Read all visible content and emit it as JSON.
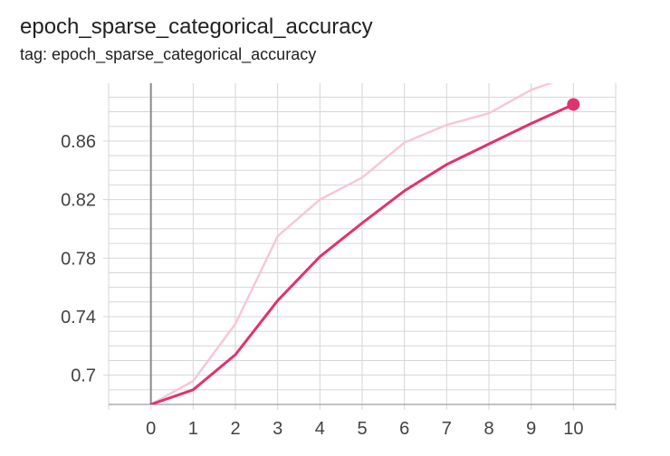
{
  "card": {
    "title": "epoch_sparse_categorical_accuracy",
    "subtitle": "tag: epoch_sparse_categorical_accuracy"
  },
  "colors": {
    "smoothed": "#e0336e",
    "raw": "#f7c7d6",
    "grid": "#d6d6d6",
    "axis": "#9e9e9e",
    "zero_line": "#8a8a8a"
  },
  "chart_data": {
    "type": "line",
    "title": "",
    "xlabel": "",
    "ylabel": "",
    "x": [
      0,
      1,
      2,
      3,
      4,
      5,
      6,
      7,
      8,
      9,
      10
    ],
    "xlim": [
      -1,
      11
    ],
    "ylim": [
      0.68,
      0.8995
    ],
    "x_ticks": [
      "0",
      "1",
      "2",
      "3",
      "4",
      "5",
      "6",
      "7",
      "8",
      "9",
      "10"
    ],
    "y_ticks": [
      "0.7",
      "0.74",
      "0.78",
      "0.82",
      "0.86"
    ],
    "grid": true,
    "legend": "none",
    "series": [
      {
        "role": "raw",
        "values": [
          0.68,
          0.696,
          0.735,
          0.795,
          0.82,
          0.835,
          0.859,
          0.871,
          0.879,
          0.895,
          0.905
        ]
      },
      {
        "role": "smoothed",
        "values": [
          0.68,
          0.69,
          0.714,
          0.751,
          0.781,
          0.804,
          0.826,
          0.844,
          0.858,
          0.872,
          0.885
        ]
      }
    ]
  }
}
